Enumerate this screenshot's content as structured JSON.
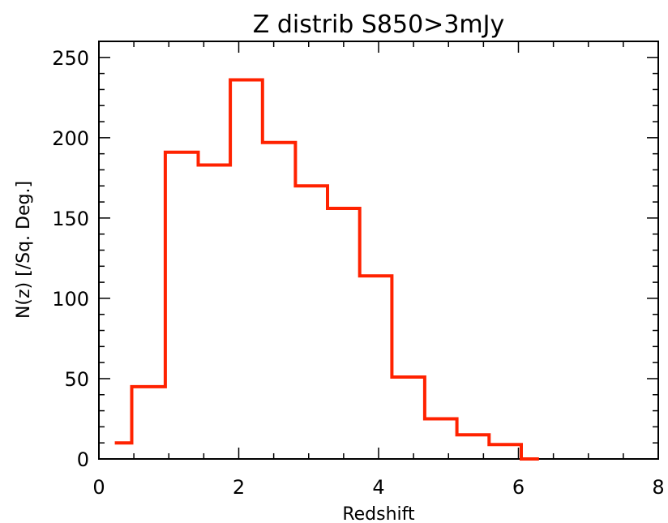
{
  "chart_data": {
    "type": "line",
    "style": "histogram-step",
    "title": "Z distrib S850>3mJy",
    "xlabel": "Redshift",
    "ylabel": "N(z) [/Sq. Deg.]",
    "xlim": [
      0,
      8
    ],
    "ylim": [
      0,
      260
    ],
    "xticks": [
      "0",
      "2",
      "4",
      "6",
      "8"
    ],
    "yticks": [
      "0",
      "50",
      "100",
      "150",
      "200",
      "250"
    ],
    "grid": false,
    "line_color": "#ff2200",
    "bins": [
      {
        "x0": 0.25,
        "x1": 0.47,
        "value": 10
      },
      {
        "x0": 0.47,
        "x1": 0.95,
        "value": 45
      },
      {
        "x0": 0.95,
        "x1": 1.42,
        "value": 191
      },
      {
        "x0": 1.42,
        "x1": 1.88,
        "value": 183
      },
      {
        "x0": 1.88,
        "x1": 2.34,
        "value": 236
      },
      {
        "x0": 2.34,
        "x1": 2.81,
        "value": 197
      },
      {
        "x0": 2.81,
        "x1": 3.27,
        "value": 170
      },
      {
        "x0": 3.27,
        "x1": 3.73,
        "value": 156
      },
      {
        "x0": 3.73,
        "x1": 4.19,
        "value": 114
      },
      {
        "x0": 4.19,
        "x1": 4.66,
        "value": 51
      },
      {
        "x0": 4.66,
        "x1": 5.12,
        "value": 25
      },
      {
        "x0": 5.12,
        "x1": 5.58,
        "value": 15
      },
      {
        "x0": 5.58,
        "x1": 6.04,
        "value": 9
      },
      {
        "x0": 6.04,
        "x1": 6.27,
        "value": 0
      }
    ]
  }
}
